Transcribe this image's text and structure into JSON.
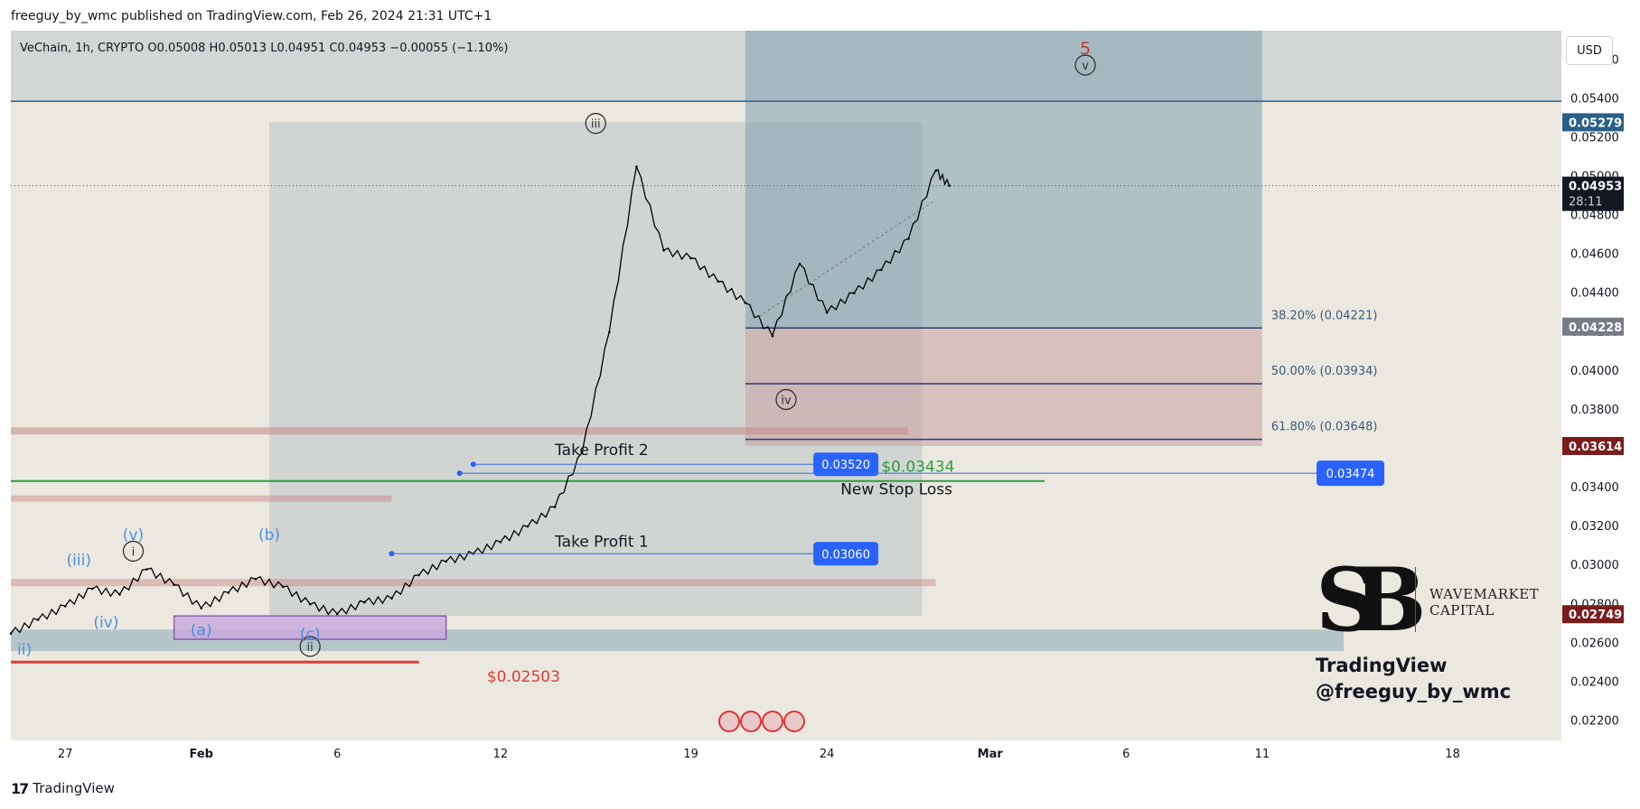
{
  "header": {
    "publish_line": "freeguy_by_wmc published on TradingView.com, Feb 26, 2024 21:31 UTC+1"
  },
  "symbol": {
    "line": "VeChain, 1h, CRYPTO  O0.05008  H0.05013  L0.04951  C0.04953  −0.00055 (−1.10%)"
  },
  "currency_button": "USD",
  "footer": {
    "brand": "TradingView"
  },
  "watermark": {
    "company_line1": "WAVEMARKET",
    "company_line2": "CAPITAL",
    "logo_letters": "SB",
    "name": "TradingView",
    "handle": "@freeguy_by_wmc"
  },
  "chart_data": {
    "type": "line",
    "price_range": [
      0.021,
      0.0575
    ],
    "date_range": [
      "2024-01-25",
      "2024-03-22"
    ],
    "x_ticks": [
      {
        "date": "2024-01-27",
        "label": "27"
      },
      {
        "date": "2024-02-01",
        "label": "Feb"
      },
      {
        "date": "2024-02-06",
        "label": "6"
      },
      {
        "date": "2024-02-12",
        "label": "12"
      },
      {
        "date": "2024-02-19",
        "label": "19"
      },
      {
        "date": "2024-02-24",
        "label": "24"
      },
      {
        "date": "2024-03-01",
        "label": "Mar"
      },
      {
        "date": "2024-03-06",
        "label": "6"
      },
      {
        "date": "2024-03-11",
        "label": "11"
      },
      {
        "date": "2024-03-18",
        "label": "18"
      }
    ],
    "y_ticks": [
      "0.02200",
      "0.02400",
      "0.02600",
      "0.02800",
      "0.03000",
      "0.03200",
      "0.03400",
      "0.03600",
      "0.03800",
      "0.04000",
      "0.04200",
      "0.04400",
      "0.04600",
      "0.04800",
      "0.05000",
      "0.05200",
      "0.05400",
      "0.05600"
    ],
    "price_series": [
      [
        "2024-01-25",
        0.0265
      ],
      [
        "2024-01-26",
        0.0272
      ],
      [
        "2024-01-27",
        0.0279
      ],
      [
        "2024-01-28",
        0.0288
      ],
      [
        "2024-01-29",
        0.0285
      ],
      [
        "2024-01-30",
        0.0298
      ],
      [
        "2024-01-31",
        0.029
      ],
      [
        "2024-02-01",
        0.0278
      ],
      [
        "2024-02-02",
        0.0286
      ],
      [
        "2024-02-03",
        0.0293
      ],
      [
        "2024-02-04",
        0.0289
      ],
      [
        "2024-02-05",
        0.028
      ],
      [
        "2024-02-06",
        0.0275
      ],
      [
        "2024-02-07",
        0.0281
      ],
      [
        "2024-02-08",
        0.0283
      ],
      [
        "2024-02-09",
        0.0295
      ],
      [
        "2024-02-10",
        0.0302
      ],
      [
        "2024-02-11",
        0.0306
      ],
      [
        "2024-02-12",
        0.0312
      ],
      [
        "2024-02-13",
        0.032
      ],
      [
        "2024-02-14",
        0.033
      ],
      [
        "2024-02-15",
        0.0358
      ],
      [
        "2024-02-16",
        0.042
      ],
      [
        "2024-02-17",
        0.0505
      ],
      [
        "2024-02-18",
        0.0462
      ],
      [
        "2024-02-19",
        0.0458
      ],
      [
        "2024-02-20",
        0.0446
      ],
      [
        "2024-02-21",
        0.0435
      ],
      [
        "2024-02-22",
        0.0418
      ],
      [
        "2024-02-23",
        0.0455
      ],
      [
        "2024-02-24",
        0.043
      ],
      [
        "2024-02-25",
        0.044
      ],
      [
        "2024-02-26",
        0.0452
      ],
      [
        "2024-02-27",
        0.0468
      ],
      [
        "2024-02-28",
        0.0503
      ],
      [
        "2024-02-28T12:00",
        0.04953
      ]
    ],
    "last_price": {
      "label": "0.04953",
      "countdown": "28:11"
    },
    "price_labels": [
      {
        "price": 0.05279,
        "label": "0.05279",
        "color": "#2a5f8a"
      },
      {
        "price": 0.04228,
        "label": "0.04228",
        "color": "#787b86"
      },
      {
        "price": 0.03614,
        "label": "0.03614",
        "color": "#7b1c1c"
      },
      {
        "price": 0.02749,
        "label": "0.02749",
        "color": "#7b1c1c"
      }
    ],
    "fib_levels": [
      {
        "price": 0.04221,
        "label": "38.20% (0.04221)"
      },
      {
        "price": 0.03934,
        "label": "50.00% (0.03934)"
      },
      {
        "price": 0.03648,
        "label": "61.80% (0.03648)"
      }
    ],
    "horizontal_line_price": 0.05387,
    "targets": [
      {
        "name": "Take Profit 2",
        "value_label": "0.03520",
        "price": 0.0352
      },
      {
        "name": "Take Profit 1",
        "value_label": "0.03060",
        "price": 0.0306
      }
    ],
    "stop_loss": {
      "label": "$0.03434",
      "caption": "New Stop Loss",
      "price": 0.03434,
      "color": "#2e9e3e"
    },
    "blue_box_value": {
      "label": "0.03474",
      "price": 0.03474
    },
    "support_line": {
      "label": "$0.02503",
      "price": 0.02503,
      "color": "#e53935"
    },
    "wave_labels": [
      {
        "text": "5",
        "style": "red"
      },
      {
        "text": "v",
        "style": "circle"
      },
      {
        "text": "iii",
        "style": "circle"
      },
      {
        "text": "iv",
        "style": "circle"
      },
      {
        "text": "i",
        "style": "circle"
      },
      {
        "text": "ii",
        "style": "circle"
      },
      {
        "text": "(iii)",
        "style": "blue"
      },
      {
        "text": "(v)",
        "style": "blue"
      },
      {
        "text": "(b)",
        "style": "blue"
      },
      {
        "text": "(iv)",
        "style": "blue"
      },
      {
        "text": "(a)",
        "style": "blue"
      },
      {
        "text": "(c)",
        "style": "blue"
      },
      {
        "text": "ii)",
        "style": "blue"
      }
    ]
  }
}
